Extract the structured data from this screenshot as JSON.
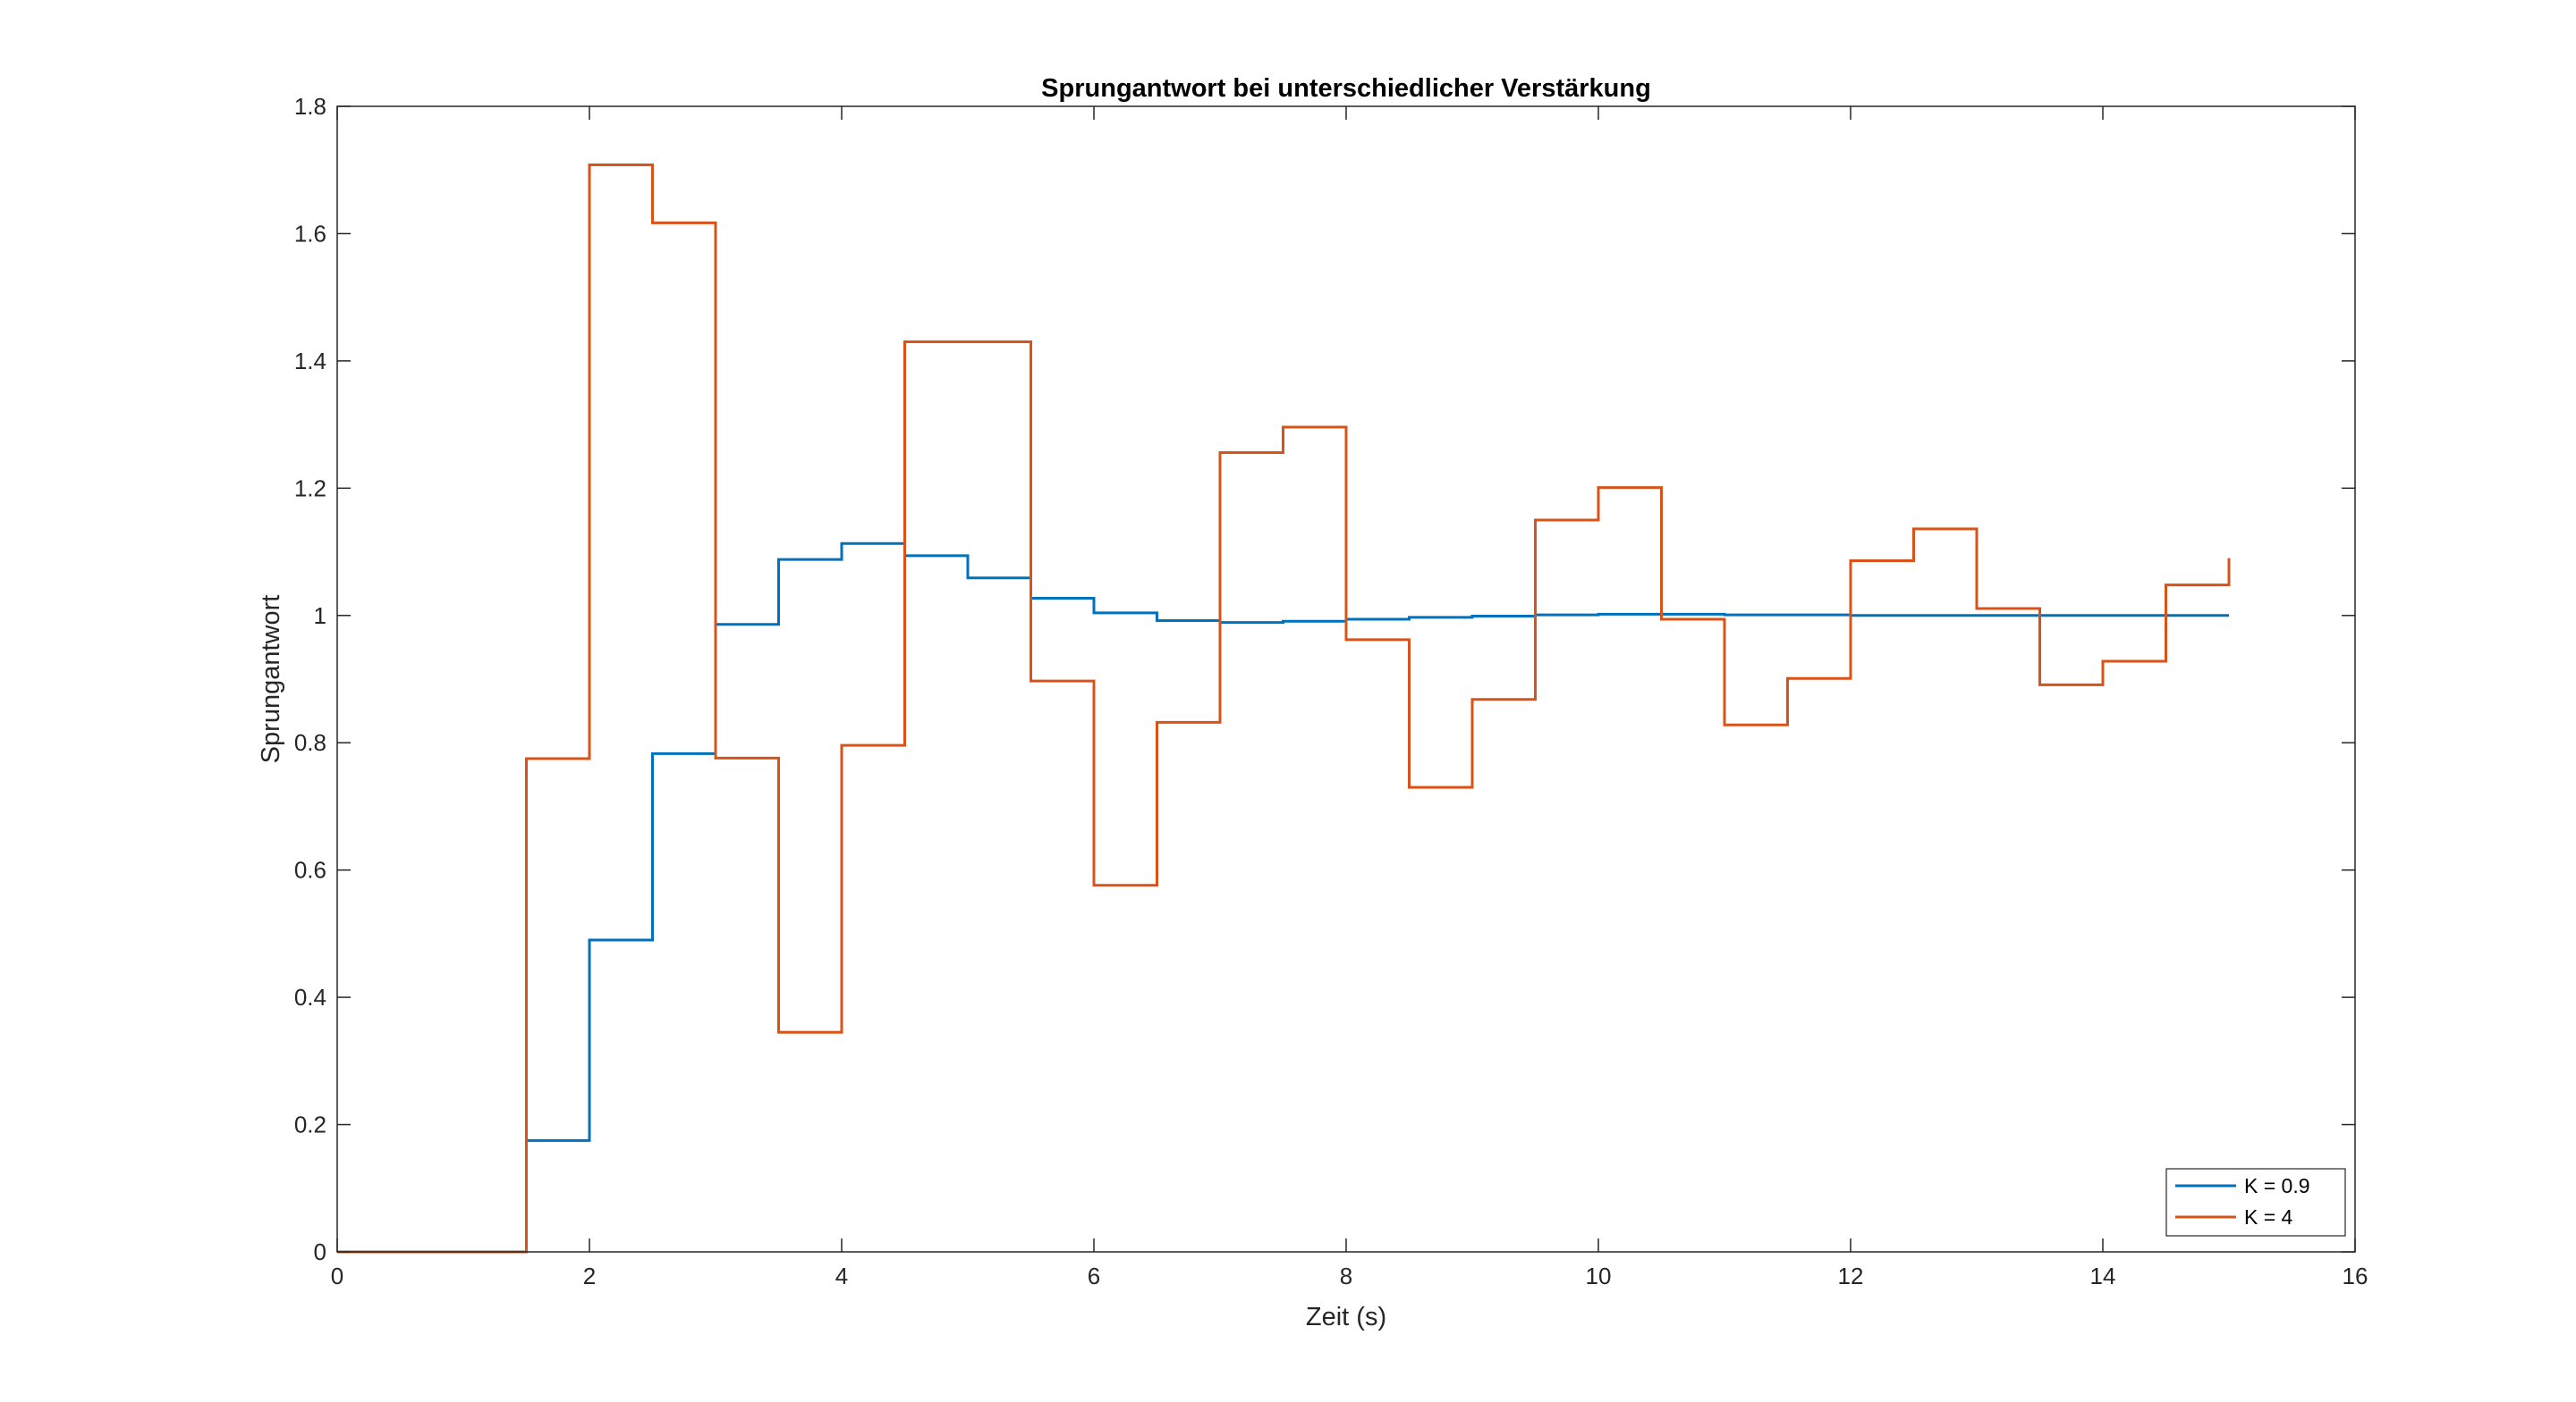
{
  "chart_data": {
    "type": "line",
    "title": "Sprungantwort bei unterschiedlicher Verstärkung",
    "xlabel": "Zeit (s)",
    "ylabel": "Sprungantwort",
    "xlim": [
      0,
      16
    ],
    "ylim": [
      0,
      1.8
    ],
    "xticks": [
      "0",
      "2",
      "4",
      "6",
      "8",
      "10",
      "12",
      "14",
      "16"
    ],
    "yticks": [
      "0",
      "0.2",
      "0.4",
      "0.6",
      "0.8",
      "1",
      "1.2",
      "1.4",
      "1.6",
      "1.8"
    ],
    "grid": false,
    "legend_location": "bottom-right",
    "step_style": "zero-order-hold",
    "series": [
      {
        "name": "K = 0.9",
        "color": "#0072BD",
        "x": [
          0,
          0.5,
          1,
          1.5,
          2,
          2.5,
          3,
          3.5,
          4,
          4.5,
          5,
          5.5,
          6,
          6.5,
          7,
          7.5,
          8,
          8.5,
          9,
          9.5,
          10,
          10.5,
          11,
          11.5,
          12,
          12.5,
          13,
          13.5,
          14,
          14.5,
          15
        ],
        "values": [
          0,
          0,
          0,
          0.175,
          0.49,
          0.783,
          0.986,
          1.088,
          1.113,
          1.094,
          1.059,
          1.027,
          1.004,
          0.992,
          0.989,
          0.991,
          0.994,
          0.997,
          0.999,
          1.001,
          1.002,
          1.002,
          1.001,
          1.001,
          1.0,
          1.0,
          1.0,
          1.0,
          1.0,
          1.0,
          1.0
        ]
      },
      {
        "name": "K = 4",
        "color": "#D95319",
        "x": [
          0,
          0.5,
          1,
          1.5,
          2,
          2.5,
          3,
          3.5,
          4,
          4.5,
          5,
          5.5,
          6,
          6.5,
          7,
          7.5,
          8,
          8.5,
          9,
          9.5,
          10,
          10.5,
          11,
          11.5,
          12,
          12.5,
          13,
          13.5,
          14,
          14.5,
          15
        ],
        "values": [
          0,
          0,
          0,
          0.775,
          1.708,
          1.617,
          0.776,
          0.345,
          0.796,
          1.43,
          1.43,
          0.897,
          0.576,
          0.832,
          1.256,
          1.296,
          0.962,
          0.73,
          0.868,
          1.15,
          1.201,
          0.994,
          0.828,
          0.901,
          1.086,
          1.136,
          1.011,
          0.891,
          0.928,
          1.048,
          1.09
        ]
      }
    ]
  }
}
